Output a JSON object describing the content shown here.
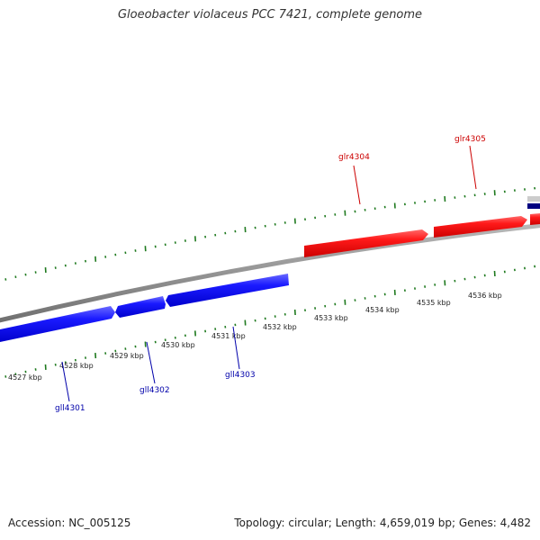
{
  "title": "Gloeobacter violaceus PCC 7421, complete genome",
  "accession": "Accession: NC_005125",
  "summary": "Topology: circular; Length: 4,659,019 bp; Genes: 4,482",
  "colors": {
    "forward": "#ee0000",
    "reverse": "#0000ee",
    "ticks": "#1f7a1f",
    "backbone": "#888888",
    "label_forward": "#cc0000",
    "label_reverse": "#0000aa"
  },
  "scale_labels": [
    "4527 kbp",
    "4528 kbp",
    "4529 kbp",
    "4530 kbp",
    "4531 kbp",
    "4532 kbp",
    "4533 kbp",
    "4534 kbp",
    "4535 kbp",
    "4536 kbp"
  ],
  "forward_genes": [
    "glr4304",
    "glr4305"
  ],
  "reverse_genes": [
    "gll4301",
    "gll4302",
    "gll4303"
  ]
}
